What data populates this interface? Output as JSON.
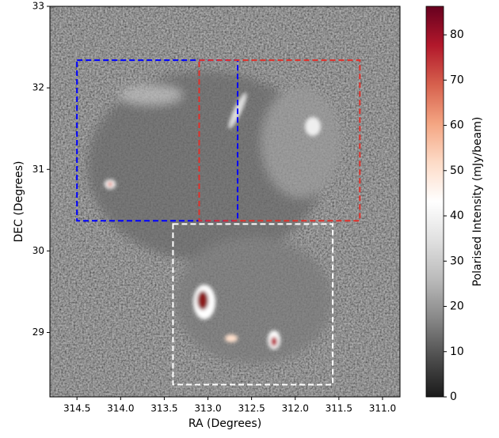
{
  "chart_data": {
    "type": "image",
    "xlabel": "RA (Degrees)",
    "ylabel": "DEC (Degrees)",
    "xlim": [
      314.81,
      310.8
    ],
    "ylim": [
      28.21,
      33
    ],
    "xticks": [
      314.5,
      {
        "value": 314,
        "label": "314.0"
      },
      313.5,
      {
        "value": 313,
        "label": "313.0"
      },
      312.5,
      {
        "value": 312,
        "label": "312.0"
      },
      311.5,
      {
        "value": 311,
        "label": "311.0"
      }
    ],
    "yticks": [
      29,
      30,
      31,
      32,
      33
    ],
    "colorbar": {
      "label": "Polarised Intensity (mJy/beam)",
      "clim": [
        0,
        86.3
      ],
      "ticks": [
        0,
        10,
        20,
        30,
        40,
        50,
        60,
        70,
        80
      ],
      "colormap": [
        "#1a1a1a",
        "#4d4d4d",
        "#878787",
        "#bababa",
        "#e0e0e0",
        "#ffffff",
        "#fddbc7",
        "#f4a582",
        "#d6604d",
        "#b2182b",
        "#67001f"
      ]
    },
    "regions": [
      {
        "color": "#0000ff",
        "ra": [
          314.5,
          312.66
        ],
        "dec": [
          30.37,
          32.34
        ]
      },
      {
        "color": "#e0302a",
        "ra": [
          313.1,
          311.26
        ],
        "dec": [
          30.37,
          32.34
        ]
      },
      {
        "color": "#ffffff",
        "ra": [
          313.4,
          311.57
        ],
        "dec": [
          28.36,
          30.33
        ]
      }
    ]
  }
}
